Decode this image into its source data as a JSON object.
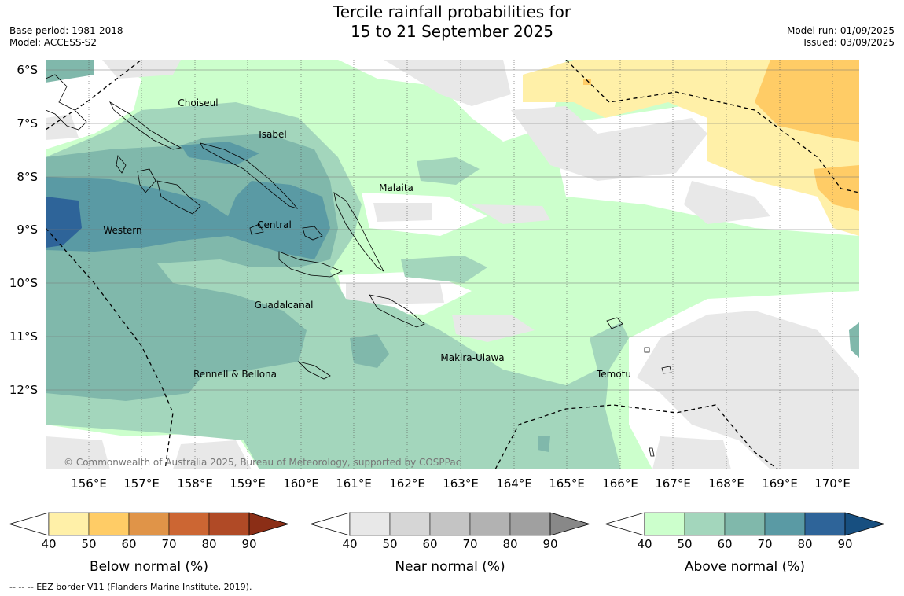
{
  "header": {
    "title_line1": "Tercile rainfall probabilities for",
    "title_line2": "15 to 21 September 2025",
    "base_period": "Base period: 1981-2018",
    "model": "Model: ACCESS-S2",
    "model_run": "Model run: 01/09/2025",
    "issued": "Issued: 03/09/2025"
  },
  "map": {
    "lat_labels": [
      "6°S",
      "7°S",
      "8°S",
      "9°S",
      "10°S",
      "11°S",
      "12°S"
    ],
    "lon_labels": [
      "156°E",
      "157°E",
      "158°E",
      "159°E",
      "160°E",
      "161°E",
      "162°E",
      "163°E",
      "164°E",
      "165°E",
      "166°E",
      "167°E",
      "168°E",
      "169°E",
      "170°E"
    ],
    "province_labels": [
      "Choiseul",
      "Isabel",
      "Malaita",
      "Western",
      "Central",
      "Guadalcanal",
      "Makira-Ulawa",
      "Rennell & Bellona",
      "Temotu"
    ],
    "copyright": "© Commonwealth of Australia 2025, Bureau of Meteorology, supported by COSPPac"
  },
  "colorbars": [
    {
      "label": "Below normal (%)",
      "ticks": [
        "40",
        "50",
        "60",
        "70",
        "80",
        "90"
      ],
      "colors": [
        "#fff0a8",
        "#ffcc66",
        "#e09448",
        "#cc6633",
        "#b04a26",
        "#8b2e16"
      ]
    },
    {
      "label": "Near normal (%)",
      "ticks": [
        "40",
        "50",
        "60",
        "70",
        "80",
        "90"
      ],
      "colors": [
        "#e8e8e8",
        "#d6d6d6",
        "#c4c4c4",
        "#b2b2b2",
        "#a0a0a0",
        "#888888"
      ]
    },
    {
      "label": "Above normal (%)",
      "ticks": [
        "40",
        "50",
        "60",
        "70",
        "80",
        "90"
      ],
      "colors": [
        "#ccffcc",
        "#a3d6bc",
        "#80b8ab",
        "#5a9aa4",
        "#2e6499",
        "#174f80"
      ]
    }
  ],
  "footnote": "--  --  -- EEZ border V11 (Flanders Marine Institute, 2019)."
}
